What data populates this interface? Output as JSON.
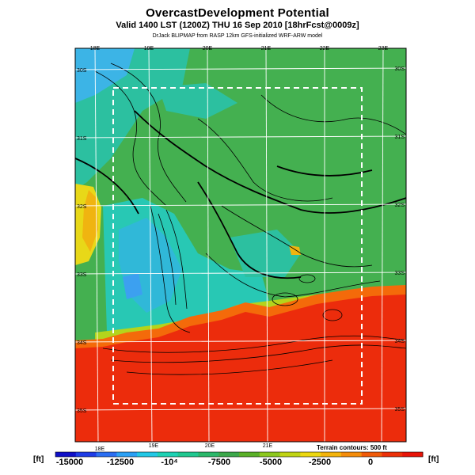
{
  "header": {
    "title": "OvercastDevelopment Potential",
    "subtitle": "Valid 1400 LST (1200Z) THU 16 Sep 2010 [18hrFcst@0009z]",
    "credit": "DrJack BLIPMAP from RASP 12km GFS-initialized WRF-ARW model"
  },
  "map": {
    "lon_labels_top": [
      "18E",
      "19E",
      "20E",
      "21E",
      "22E",
      "23E"
    ],
    "lon_labels_bottom": [
      "18E",
      "19E",
      "20E",
      "21E"
    ],
    "lat_labels_left": [
      "30S",
      "31S",
      "32S",
      "33S",
      "34S",
      "35S"
    ],
    "lat_labels_right": [
      "30S",
      "31S",
      "32S",
      "33S",
      "34S",
      "35S"
    ],
    "terrain_note": "Terrain contours: 500 ft"
  },
  "colorbar": {
    "unit": "[ft]",
    "labels": [
      "-15000",
      "-12500",
      "-10⁴",
      "-7500",
      "-5000",
      "-2500",
      "0"
    ],
    "colors": [
      "#1010c8",
      "#1e3ce6",
      "#2a6ef2",
      "#2aa0f5",
      "#22c8e6",
      "#1ed2b4",
      "#20c890",
      "#2ab86a",
      "#3ca84a",
      "#5ab028",
      "#8cc81e",
      "#c0d414",
      "#ecd810",
      "#f4b40c",
      "#f48c0a",
      "#f05a08",
      "#ec3008",
      "#e81408"
    ]
  },
  "legend_colors": {
    "sea": "#f03010",
    "land_green": "#3cb45a",
    "cyan": "#28c8b4",
    "blue": "#3cb4e6",
    "yellow": "#f0dc14"
  }
}
